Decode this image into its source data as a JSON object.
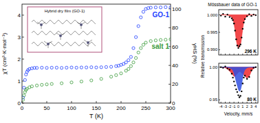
{
  "chart_data": [
    {
      "type": "scatter",
      "xlabel": "T (K)",
      "ylabel": "χT (cm³·K·mol⁻¹)",
      "y2label": "γHS (%)",
      "annotation": "Hybrid dry film (GO-1)",
      "xlim": [
        0,
        300
      ],
      "xticks": [
        0,
        50,
        100,
        150,
        200,
        250,
        300
      ],
      "ylim": [
        0,
        4.5
      ],
      "yticks": [
        0,
        1,
        2,
        3,
        4
      ],
      "y2lim": [
        0,
        105
      ],
      "y2ticks": [
        0,
        20,
        40,
        60,
        80,
        100
      ],
      "grid": false,
      "series": [
        {
          "name": "GO-1",
          "color": "#1f3fff",
          "marker": "circle-open",
          "x": [
            2,
            4,
            6,
            8,
            10,
            12,
            15,
            20,
            25,
            30,
            40,
            50,
            60,
            70,
            80,
            90,
            100,
            110,
            120,
            130,
            140,
            150,
            160,
            170,
            180,
            190,
            195,
            200,
            205,
            210,
            215,
            220,
            225,
            230,
            235,
            240,
            245,
            250,
            255,
            260,
            270,
            280,
            290,
            300
          ],
          "values": [
            0.25,
            0.7,
            1.05,
            1.3,
            1.42,
            1.5,
            1.55,
            1.58,
            1.6,
            1.6,
            1.61,
            1.6,
            1.61,
            1.61,
            1.6,
            1.61,
            1.62,
            1.61,
            1.62,
            1.62,
            1.63,
            1.62,
            1.63,
            1.64,
            1.65,
            1.68,
            1.7,
            1.74,
            1.78,
            1.85,
            1.95,
            2.1,
            2.5,
            3.0,
            3.5,
            3.9,
            4.15,
            4.28,
            4.32,
            4.34,
            4.35,
            4.35,
            4.36,
            4.35
          ]
        },
        {
          "name": "salt 1",
          "color": "#3a9a3a",
          "marker": "circle-open",
          "x": [
            2,
            4,
            6,
            8,
            10,
            15,
            20,
            30,
            40,
            50,
            60,
            80,
            100,
            120,
            140,
            160,
            180,
            190,
            200,
            210,
            215,
            220,
            225,
            230,
            235,
            240,
            245,
            250,
            260,
            270,
            280,
            290,
            300
          ],
          "values": [
            0.15,
            0.35,
            0.5,
            0.6,
            0.65,
            0.72,
            0.76,
            0.8,
            0.83,
            0.85,
            0.87,
            0.9,
            0.94,
            0.98,
            1.03,
            1.1,
            1.2,
            1.27,
            1.35,
            1.47,
            1.55,
            1.68,
            1.85,
            2.05,
            2.3,
            2.5,
            2.65,
            2.75,
            2.82,
            2.85,
            2.87,
            2.88,
            2.9
          ]
        }
      ]
    },
    {
      "type": "scatter",
      "title": "Mössbauer data of GO-1",
      "ylabel": "Relative transmission",
      "annotation": "296 K",
      "tick_labels": "y",
      "xlim": [
        -4.5,
        4.5
      ],
      "xticks": [
        -4,
        -3,
        -2,
        -1,
        0,
        1,
        2,
        3,
        4
      ],
      "ylim": [
        0.9885,
        1.0015
      ],
      "yticks": [
        {
          "value": 0.99,
          "label": "0.990"
        },
        {
          "value": 0.995,
          "label": "0.995"
        },
        {
          "value": 1,
          "label": "1.000"
        }
      ],
      "x": [
        -4,
        -3.5,
        -3,
        -2.5,
        -2,
        -1.5,
        -1.25,
        -1,
        -0.75,
        -0.5,
        -0.25,
        0,
        0.25,
        0.5,
        0.75,
        1,
        1.25,
        1.5,
        2,
        2.5,
        3,
        3.5,
        4
      ],
      "series": [
        {
          "type": "area",
          "color": "#f0282a",
          "values": [
            1.0,
            1.0,
            1.0,
            0.9999,
            0.9998,
            0.9993,
            0.9988,
            0.9976,
            0.9955,
            0.993,
            0.9912,
            0.9906,
            0.9909,
            0.9914,
            0.9934,
            0.996,
            0.9978,
            0.9989,
            0.9997,
            0.9999,
            1.0,
            1.0,
            1.0
          ]
        },
        {
          "type": "scatter",
          "color": "#000000",
          "marker": "dot",
          "values": [
            0.9998,
            1.0003,
            0.9995,
            1.0001,
            0.9994,
            0.999,
            0.9985,
            0.9975,
            0.9955,
            0.993,
            0.9912,
            0.9905,
            0.991,
            0.9915,
            0.9935,
            0.996,
            0.9978,
            0.9988,
            0.9996,
            1.0002,
            0.9997,
            1.0001,
            0.9999
          ]
        }
      ]
    },
    {
      "type": "scatter",
      "xlabel": "Velocity, mm/s",
      "annotation": "80 K",
      "xlim": [
        -4.5,
        4.5
      ],
      "xticks": [
        -4,
        -3,
        -2,
        -1,
        0,
        1,
        2,
        3,
        4
      ],
      "ylim": [
        0.945,
        1.006
      ],
      "yticks": [
        {
          "value": 0.95,
          "label": "0.95"
        },
        {
          "value": 1,
          "label": "1.00"
        }
      ],
      "x": [
        -4,
        -3.5,
        -3,
        -2.5,
        -2,
        -1.5,
        -1.25,
        -1,
        -0.75,
        -0.5,
        -0.25,
        0,
        0.25,
        0.5,
        0.75,
        1,
        1.25,
        1.5,
        2,
        2.5,
        3,
        3.5,
        4
      ],
      "series": [
        {
          "type": "area",
          "color": "#f0282a",
          "values": [
            1.0,
            1.0,
            0.999,
            0.997,
            0.994,
            0.99,
            0.988,
            0.986,
            0.986,
            0.988,
            0.99,
            0.992,
            0.993,
            0.993,
            0.991,
            0.99,
            0.988,
            0.986,
            0.983,
            0.986,
            0.994,
            0.998,
            1.0
          ]
        },
        {
          "type": "area",
          "color": "#3050e0",
          "values": [
            1.0,
            1.0,
            1.0,
            1.0,
            0.999,
            0.997,
            0.995,
            0.991,
            0.985,
            0.978,
            0.972,
            0.966,
            0.963,
            0.965,
            0.972,
            0.984,
            0.992,
            0.996,
            0.999,
            1.0,
            1.0,
            1.0,
            1.0
          ]
        },
        {
          "type": "scatter",
          "color": "#000000",
          "marker": "dot",
          "values": [
            1.0,
            0.999,
            1.001,
            0.998,
            0.996,
            0.99,
            0.984,
            0.978,
            0.972,
            0.966,
            0.962,
            0.957,
            0.954,
            0.956,
            0.963,
            0.975,
            0.984,
            0.987,
            0.982,
            0.985,
            0.995,
            0.999,
            1.0
          ]
        }
      ]
    }
  ]
}
